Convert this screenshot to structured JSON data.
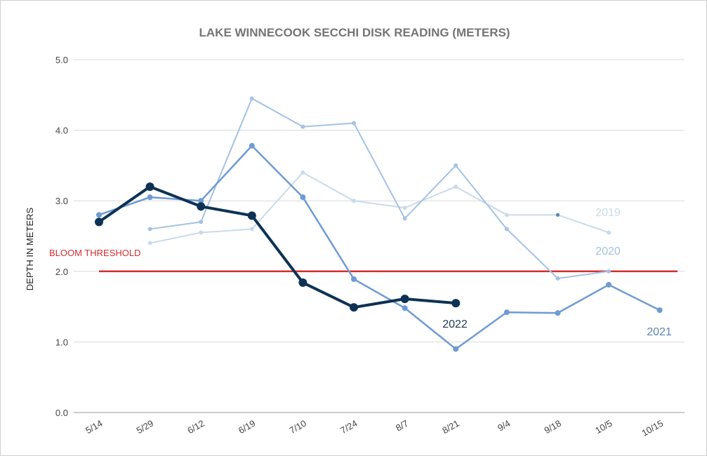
{
  "chart_data": {
    "type": "line",
    "title": "LAKE WINNECOOK SECCHI DISK READING (METERS)",
    "ylabel": "DEPTH IN METERS",
    "xlabel": "",
    "ylim": [
      0,
      5
    ],
    "yticks": [
      "0.0",
      "1.0",
      "2.0",
      "3.0",
      "4.0",
      "5.0"
    ],
    "yticks_values": [
      0,
      1,
      2,
      3,
      4,
      5
    ],
    "categories": [
      "5/14",
      "5/29",
      "6/12",
      "6/19",
      "7/10",
      "7/24",
      "8/7",
      "8/21",
      "9/4",
      "9/18",
      "10/5",
      "10/15"
    ],
    "grid": true,
    "threshold": {
      "label": "BLOOM THRESHOLD",
      "value": 2.0,
      "color": "#d32f2f"
    },
    "series": [
      {
        "name": "2019",
        "color": "#c9dbea",
        "width": 2,
        "marker": 3,
        "values": [
          null,
          2.4,
          2.55,
          2.6,
          3.4,
          3.0,
          2.9,
          3.2,
          2.8,
          2.8,
          2.55,
          null
        ]
      },
      {
        "name": "2020",
        "color": "#a4c2e3",
        "width": 2,
        "marker": 3,
        "values": [
          null,
          2.6,
          2.7,
          4.45,
          4.05,
          4.1,
          2.75,
          3.5,
          2.6,
          1.9,
          2.0,
          null
        ]
      },
      {
        "name": "2021",
        "color": "#6f9bd4",
        "width": 2.5,
        "marker": 4,
        "values": [
          2.8,
          3.05,
          3.0,
          3.78,
          3.05,
          1.89,
          1.48,
          0.9,
          1.42,
          1.41,
          1.81,
          1.45
        ]
      },
      {
        "name": "2022",
        "color": "#0d3255",
        "width": 4,
        "marker": 6,
        "values": [
          2.7,
          3.2,
          2.92,
          2.79,
          1.84,
          1.49,
          1.61,
          1.55,
          null,
          null,
          null,
          null
        ]
      }
    ],
    "series_labels": [
      {
        "name": "2019",
        "color": "#c9dbea"
      },
      {
        "name": "2020",
        "color": "#a4c2e3"
      },
      {
        "name": "2021",
        "color": "#5a86b8"
      },
      {
        "name": "2022",
        "color": "#1f3a55"
      }
    ]
  }
}
